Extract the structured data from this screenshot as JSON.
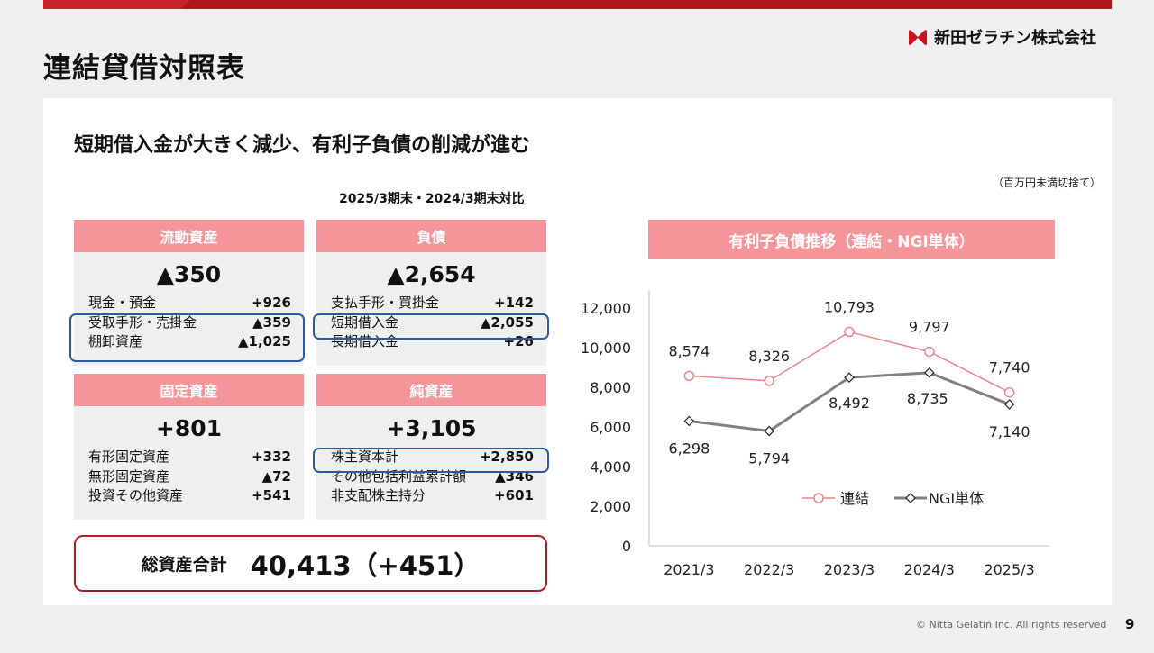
{
  "title": "連結貸借対照表",
  "company": "新田ゼラチン株式会社",
  "headline": "短期借入金が大きく減少、有利子負債の削減が進む",
  "unit_note": "（百万円未満切捨て）",
  "compare_label": "2025/3期末・2024/3期末対比",
  "cards": {
    "current_assets": {
      "title": "流動資産",
      "total": "▲350",
      "rows": [
        {
          "label": "現金・預金",
          "value": "+926"
        },
        {
          "label": "受取手形・売掛金",
          "value": "▲359"
        },
        {
          "label": "棚卸資産",
          "value": "▲1,025"
        }
      ]
    },
    "liabilities": {
      "title": "負債",
      "total": "▲2,654",
      "rows": [
        {
          "label": "支払手形・買掛金",
          "value": "+142"
        },
        {
          "label": "短期借入金",
          "value": "▲2,055"
        },
        {
          "label": "長期借入金",
          "value": "+26"
        }
      ]
    },
    "fixed_assets": {
      "title": "固定資産",
      "total": "+801",
      "rows": [
        {
          "label": "有形固定資産",
          "value": "+332"
        },
        {
          "label": "無形固定資産",
          "value": "▲72"
        },
        {
          "label": "投資その他資産",
          "value": "+541"
        }
      ]
    },
    "net_assets": {
      "title": "純資産",
      "total": "+3,105",
      "rows": [
        {
          "label": "株主資本計",
          "value": "+2,850"
        },
        {
          "label": "その他包括利益累計額",
          "value": "▲346"
        },
        {
          "label": "非支配株主持分",
          "value": "+601"
        }
      ]
    }
  },
  "total_assets": {
    "label": "総資産合計",
    "value": "40,413（+451）"
  },
  "chart_title": "有利子負債推移（連結・NGI単体）",
  "chart_data": {
    "type": "line",
    "categories": [
      "2021/3",
      "2022/3",
      "2023/3",
      "2024/3",
      "2025/3"
    ],
    "series": [
      {
        "name": "連結",
        "values": [
          8574,
          8326,
          10793,
          9797,
          7740
        ],
        "labels": [
          "8,574",
          "8,326",
          "10,793",
          "9,797",
          "7,740"
        ],
        "color": "#e8878c"
      },
      {
        "name": "NGI単体",
        "values": [
          6298,
          5794,
          8492,
          8735,
          7140
        ],
        "labels": [
          "6,298",
          "5,794",
          "8,492",
          "8,735",
          "7,140"
        ],
        "color": "#808080"
      }
    ],
    "ylim": [
      0,
      12000
    ],
    "yticks": [
      "0",
      "2,000",
      "4,000",
      "6,000",
      "8,000",
      "10,000",
      "12,000"
    ],
    "yticks_values": [
      0,
      2000,
      4000,
      6000,
      8000,
      10000,
      12000
    ],
    "legend": "center"
  },
  "footer": {
    "copyright": "© Nitta Gelatin Inc. All rights reserved",
    "page": "9"
  },
  "colors": {
    "accent": "#b0151d",
    "card_header": "#f4959a",
    "highlight": "#2c5aa0"
  }
}
